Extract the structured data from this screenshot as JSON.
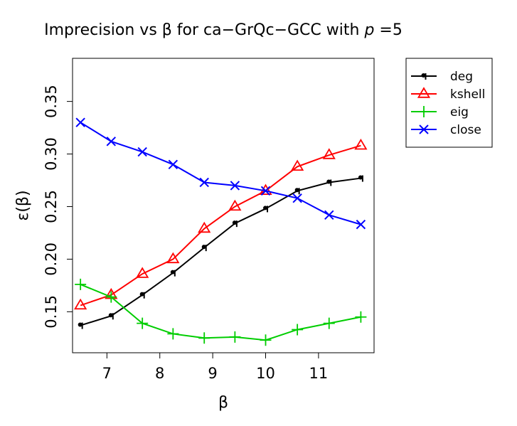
{
  "chart_data": {
    "type": "line",
    "title_parts": [
      "Imprecision vs β for ca−GrQc−GCC with ",
      "p",
      " =5"
    ],
    "xlabel": "β",
    "ylabel": "ε(β)",
    "xlim": [
      6.35,
      12.05
    ],
    "ylim": [
      0.111,
      0.391
    ],
    "xticks": [
      7,
      8,
      9,
      10,
      11
    ],
    "xtick_labels": [
      "7",
      "8",
      "9",
      "10",
      "11"
    ],
    "yticks": [
      0.15,
      0.2,
      0.25,
      0.3,
      0.35
    ],
    "ytick_labels": [
      "0.15",
      "0.20",
      "0.25",
      "0.30",
      "0.35"
    ],
    "grid": false,
    "legend_position": "outside top-right",
    "x": [
      6.5,
      7.08,
      7.67,
      8.25,
      8.84,
      9.42,
      10.0,
      10.6,
      11.2,
      11.8
    ],
    "series": [
      {
        "name": "deg",
        "color": "#000000",
        "marker": "q",
        "values": [
          0.137,
          0.146,
          0.166,
          0.187,
          0.211,
          0.234,
          0.248,
          0.265,
          0.273,
          0.277
        ]
      },
      {
        "name": "kshell",
        "color": "#ff0000",
        "marker": "triangle",
        "values": [
          0.156,
          0.166,
          0.186,
          0.2,
          0.229,
          0.25,
          0.265,
          0.288,
          0.299,
          0.308
        ]
      },
      {
        "name": "eig",
        "color": "#00cd00",
        "marker": "plus",
        "values": [
          0.176,
          0.164,
          0.139,
          0.129,
          0.125,
          0.126,
          0.123,
          0.133,
          0.139,
          0.145
        ]
      },
      {
        "name": "close",
        "color": "#0000ff",
        "marker": "x",
        "values": [
          0.33,
          0.312,
          0.302,
          0.29,
          0.273,
          0.27,
          0.265,
          0.258,
          0.242,
          0.233
        ]
      }
    ]
  }
}
